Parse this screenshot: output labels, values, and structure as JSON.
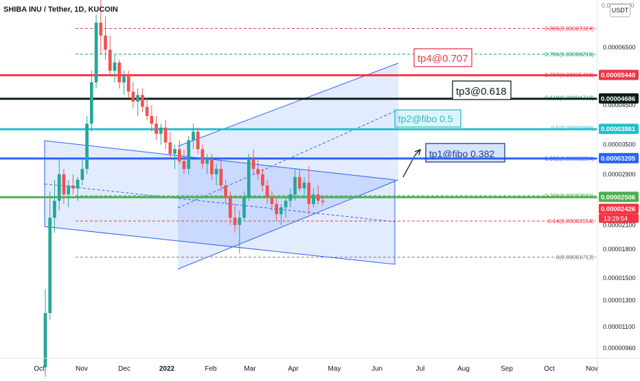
{
  "header": {
    "title": "SHIBA INU / Tether, 1D, KUCOIN",
    "currency_button": "USDT",
    "top_price_fragment": "0.00008000"
  },
  "chart_data": {
    "type": "candlestick",
    "title": "SHIBA INU / Tether, 1D, KUCOIN",
    "y_scale": "log",
    "ylim": [
      9e-06,
      8.7e-05
    ],
    "y_ticks": [
      "0.00006500",
      "0.00004500",
      "0.00003500",
      "0.00002900",
      "0.00002100",
      "0.00001800",
      "0.00001500",
      "0.00001300",
      "0.00001100",
      "0.00000960"
    ],
    "x_ticks": [
      "Oct",
      "Nov",
      "Dec",
      "2022",
      "Feb",
      "Mar",
      "Apr",
      "May",
      "Jun",
      "Jul",
      "Aug",
      "Sep",
      "Oct",
      "Nov"
    ],
    "price_labels": [
      {
        "text": "0.00005440",
        "value": 5.44e-05,
        "color": "#f23645"
      },
      {
        "text": "0.00004686",
        "value": 4.686e-05,
        "color": "#0b1e16"
      },
      {
        "text": "0.00003861",
        "value": 3.861e-05,
        "color": "#22bfc9"
      },
      {
        "text": "0.00003205",
        "value": 3.205e-05,
        "color": "#2962ff"
      },
      {
        "text": "0.00002506",
        "value": 2.506e-05,
        "color": "#4caf50"
      },
      {
        "text": "0.00002426",
        "value": 2.426e-05,
        "color": "#f23645"
      }
    ],
    "countdown": "13:29:54",
    "fib_levels": [
      {
        "label": "0.886(0.00007324)",
        "value": 7.324e-05,
        "color": "#f23645",
        "dash": true
      },
      {
        "label": "0.786(0.00006216)",
        "value": 6.216e-05,
        "color": "#089981",
        "dash": true
      },
      {
        "label": "0.707(0.00005460)",
        "value": 5.46e-05,
        "color": "#f23645",
        "dash": false
      },
      {
        "label": "0.618(0.00004718)",
        "value": 4.718e-05,
        "color": "#089981",
        "dash": false
      },
      {
        "label": "0.5(0.00003888)",
        "value": 3.888e-05,
        "color": "#22bfc9",
        "dash": false
      },
      {
        "label": "0.382(0.00003204)",
        "value": 3.204e-05,
        "color": "#2962ff",
        "dash": false
      },
      {
        "label": "0.236(0.00002531)",
        "value": 2.531e-05,
        "color": "#4caf50",
        "dash": true
      },
      {
        "label": "0.14(0.00002154)",
        "value": 2.154e-05,
        "color": "#f23645",
        "dash": true
      },
      {
        "label": "0(0.00001712)",
        "value": 1.712e-05,
        "color": "#787b86",
        "dash": true
      }
    ],
    "horizontal_lines": [
      {
        "value": 5.44e-05,
        "color": "#f23645"
      },
      {
        "value": 4.686e-05,
        "color": "#0b1e16"
      },
      {
        "value": 3.861e-05,
        "color": "#22bfc9"
      },
      {
        "value": 3.205e-05,
        "color": "#2962ff"
      },
      {
        "value": 2.506e-05,
        "color": "#4caf50"
      }
    ],
    "annotations": [
      {
        "text": "tp4@0.707",
        "color": "#f23645"
      },
      {
        "text": "tp3@0.618",
        "color": "#0b1e16"
      },
      {
        "text": "tp2@fibo 0.5",
        "color": "#22bfc9"
      },
      {
        "text": "tp1@fibo 0.382",
        "color": "#1e3a8a"
      }
    ],
    "ohlc": [
      {
        "o": 8.5e-06,
        "h": 1.4e-05,
        "l": 8e-06,
        "c": 1.2e-05
      },
      {
        "o": 1.2e-05,
        "h": 2.6e-05,
        "l": 1.15e-05,
        "c": 2.2e-05
      },
      {
        "o": 2.2e-05,
        "h": 2.8e-05,
        "l": 2e-05,
        "c": 2.45e-05
      },
      {
        "o": 2.45e-05,
        "h": 3.2e-05,
        "l": 2.3e-05,
        "c": 2.9e-05
      },
      {
        "o": 2.9e-05,
        "h": 3e-05,
        "l": 2.4e-05,
        "c": 2.55e-05
      },
      {
        "o": 2.55e-05,
        "h": 2.8e-05,
        "l": 2.35e-05,
        "c": 2.7e-05
      },
      {
        "o": 2.7e-05,
        "h": 2.9e-05,
        "l": 2.55e-05,
        "c": 2.65e-05
      },
      {
        "o": 2.65e-05,
        "h": 2.85e-05,
        "l": 2.45e-05,
        "c": 2.8e-05
      },
      {
        "o": 2.8e-05,
        "h": 3.2e-05,
        "l": 2.7e-05,
        "c": 3e-05
      },
      {
        "o": 3e-05,
        "h": 4.2e-05,
        "l": 2.9e-05,
        "c": 4e-05
      },
      {
        "o": 4e-05,
        "h": 5.6e-05,
        "l": 3.8e-05,
        "c": 5.2e-05
      },
      {
        "o": 5.2e-05,
        "h": 8e-05,
        "l": 5e-05,
        "c": 7.6e-05
      },
      {
        "o": 7.6e-05,
        "h": 8.8e-05,
        "l": 6.2e-05,
        "c": 7e-05
      },
      {
        "o": 7e-05,
        "h": 7.9e-05,
        "l": 6e-05,
        "c": 6.4e-05
      },
      {
        "o": 6.4e-05,
        "h": 7e-05,
        "l": 5.4e-05,
        "c": 5.6e-05
      },
      {
        "o": 5.6e-05,
        "h": 6.2e-05,
        "l": 5.2e-05,
        "c": 5.9e-05
      },
      {
        "o": 5.9e-05,
        "h": 6e-05,
        "l": 5e-05,
        "c": 5.2e-05
      },
      {
        "o": 5.2e-05,
        "h": 5.6e-05,
        "l": 4.8e-05,
        "c": 5.4e-05
      },
      {
        "o": 5.4e-05,
        "h": 5.6e-05,
        "l": 4.7e-05,
        "c": 4.9e-05
      },
      {
        "o": 4.9e-05,
        "h": 5.2e-05,
        "l": 4.4e-05,
        "c": 4.6e-05
      },
      {
        "o": 4.6e-05,
        "h": 5e-05,
        "l": 4.2e-05,
        "c": 4.8e-05
      },
      {
        "o": 4.8e-05,
        "h": 5e-05,
        "l": 4.3e-05,
        "c": 4.45e-05
      },
      {
        "o": 4.45e-05,
        "h": 4.7e-05,
        "l": 4.1e-05,
        "c": 4.2e-05
      },
      {
        "o": 4.2e-05,
        "h": 4.5e-05,
        "l": 3.8e-05,
        "c": 4e-05
      },
      {
        "o": 4e-05,
        "h": 4.2e-05,
        "l": 3.6e-05,
        "c": 3.75e-05
      },
      {
        "o": 3.75e-05,
        "h": 4e-05,
        "l": 3.5e-05,
        "c": 3.9e-05
      },
      {
        "o": 3.9e-05,
        "h": 4.1e-05,
        "l": 3.4e-05,
        "c": 3.55e-05
      },
      {
        "o": 3.55e-05,
        "h": 3.8e-05,
        "l": 3.2e-05,
        "c": 3.3e-05
      },
      {
        "o": 3.3e-05,
        "h": 3.5e-05,
        "l": 3e-05,
        "c": 3.4e-05
      },
      {
        "o": 3.4e-05,
        "h": 3.6e-05,
        "l": 3.1e-05,
        "c": 3.15e-05
      },
      {
        "o": 3.15e-05,
        "h": 3.4e-05,
        "l": 2.9e-05,
        "c": 3e-05
      },
      {
        "o": 3e-05,
        "h": 3.7e-05,
        "l": 2.9e-05,
        "c": 3.6e-05
      },
      {
        "o": 3.6e-05,
        "h": 4e-05,
        "l": 3.4e-05,
        "c": 3.8e-05
      },
      {
        "o": 3.8e-05,
        "h": 3.9e-05,
        "l": 3.3e-05,
        "c": 3.4e-05
      },
      {
        "o": 3.4e-05,
        "h": 3.5e-05,
        "l": 3e-05,
        "c": 3.1e-05
      },
      {
        "o": 3.1e-05,
        "h": 3.3e-05,
        "l": 2.9e-05,
        "c": 3.2e-05
      },
      {
        "o": 3.2e-05,
        "h": 3.3e-05,
        "l": 2.8e-05,
        "c": 2.9e-05
      },
      {
        "o": 2.9e-05,
        "h": 3.1e-05,
        "l": 2.7e-05,
        "c": 3e-05
      },
      {
        "o": 3e-05,
        "h": 3.2e-05,
        "l": 2.6e-05,
        "c": 2.7e-05
      },
      {
        "o": 2.7e-05,
        "h": 2.8e-05,
        "l": 2.4e-05,
        "c": 2.5e-05
      },
      {
        "o": 2.5e-05,
        "h": 2.6e-05,
        "l": 2.1e-05,
        "c": 2.2e-05
      },
      {
        "o": 2.2e-05,
        "h": 2.4e-05,
        "l": 2e-05,
        "c": 2.1e-05
      },
      {
        "o": 2.1e-05,
        "h": 2.3e-05,
        "l": 1.75e-05,
        "c": 2.2e-05
      },
      {
        "o": 2.2e-05,
        "h": 2.6e-05,
        "l": 2.15e-05,
        "c": 2.5e-05
      },
      {
        "o": 2.5e-05,
        "h": 3.3e-05,
        "l": 2.45e-05,
        "c": 3.2e-05
      },
      {
        "o": 3.2e-05,
        "h": 3.4e-05,
        "l": 2.9e-05,
        "c": 3e-05
      },
      {
        "o": 3e-05,
        "h": 3.2e-05,
        "l": 2.8e-05,
        "c": 2.9e-05
      },
      {
        "o": 2.9e-05,
        "h": 3e-05,
        "l": 2.6e-05,
        "c": 2.7e-05
      },
      {
        "o": 2.7e-05,
        "h": 2.8e-05,
        "l": 2.4e-05,
        "c": 2.5e-05
      },
      {
        "o": 2.5e-05,
        "h": 2.6e-05,
        "l": 2.3e-05,
        "c": 2.4e-05
      },
      {
        "o": 2.4e-05,
        "h": 2.5e-05,
        "l": 2.15e-05,
        "c": 2.25e-05
      },
      {
        "o": 2.25e-05,
        "h": 2.4e-05,
        "l": 2.1e-05,
        "c": 2.35e-05
      },
      {
        "o": 2.35e-05,
        "h": 2.5e-05,
        "l": 2.2e-05,
        "c": 2.45e-05
      },
      {
        "o": 2.45e-05,
        "h": 2.65e-05,
        "l": 2.35e-05,
        "c": 2.55e-05
      },
      {
        "o": 2.55e-05,
        "h": 3e-05,
        "l": 2.45e-05,
        "c": 2.85e-05
      },
      {
        "o": 2.85e-05,
        "h": 3e-05,
        "l": 2.6e-05,
        "c": 2.65e-05
      },
      {
        "o": 2.65e-05,
        "h": 2.85e-05,
        "l": 2.5e-05,
        "c": 2.75e-05
      },
      {
        "o": 2.75e-05,
        "h": 3.05e-05,
        "l": 2.25e-05,
        "c": 2.4e-05
      },
      {
        "o": 2.4e-05,
        "h": 2.65e-05,
        "l": 2.35e-05,
        "c": 2.55e-05
      },
      {
        "o": 2.55e-05,
        "h": 2.7e-05,
        "l": 2.4e-05,
        "c": 2.45e-05
      },
      {
        "o": 2.45e-05,
        "h": 2.5e-05,
        "l": 2.38e-05,
        "c": 2.43e-05
      }
    ]
  }
}
